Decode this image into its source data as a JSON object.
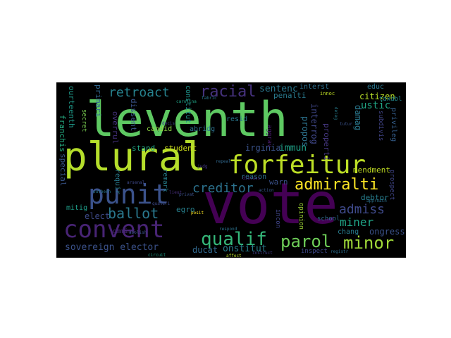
{
  "word_cloud": {
    "background": "#000000",
    "words": [
      {
        "text": "leventh",
        "color": "#5ec962"
      },
      {
        "text": "vote",
        "color": "#440154"
      },
      {
        "text": "plural",
        "color": "#b5de2b"
      },
      {
        "text": "forfeitur",
        "color": "#bddf26"
      },
      {
        "text": "convent",
        "color": "#482475"
      },
      {
        "text": "punit",
        "color": "#3b528b"
      },
      {
        "text": "qualif",
        "color": "#35b779"
      },
      {
        "text": "parol",
        "color": "#6ece58"
      },
      {
        "text": "minor",
        "color": "#a0da39"
      },
      {
        "text": "admiralti",
        "color": "#fde725"
      },
      {
        "text": "creditor",
        "color": "#2c728e"
      },
      {
        "text": "ballot",
        "color": "#2a788e"
      },
      {
        "text": "racial",
        "color": "#46327e"
      },
      {
        "text": "retroact",
        "color": "#26828e"
      },
      {
        "text": "admiss",
        "color": "#3e4989"
      },
      {
        "text": "miner",
        "color": "#20a486"
      },
      {
        "text": "sovereign elector",
        "color": "#3b528b"
      },
      {
        "text": "onstitut",
        "color": "#287d8e"
      },
      {
        "text": "ducat",
        "color": "#31688e"
      },
      {
        "text": "mendment",
        "color": "#c2df23"
      },
      {
        "text": "citizen",
        "color": "#b8de29"
      },
      {
        "text": "sentenc",
        "color": "#2a788e"
      },
      {
        "text": "penalti",
        "color": "#297a8e"
      },
      {
        "text": "ustic",
        "color": "#21a685"
      },
      {
        "text": "irginia",
        "color": "#3a538b"
      },
      {
        "text": "immun",
        "color": "#1fa187"
      },
      {
        "text": "student",
        "color": "#d0e11c"
      },
      {
        "text": "stand",
        "color": "#22a884"
      },
      {
        "text": "reason",
        "color": "#2d708e"
      },
      {
        "text": "warn",
        "color": "#3b528b"
      },
      {
        "text": "debtor",
        "color": "#277f8e"
      },
      {
        "text": "resid",
        "color": "#2a788e"
      },
      {
        "text": "candid",
        "color": "#8fd744"
      },
      {
        "text": "abridg",
        "color": "#2d718e"
      },
      {
        "text": "elect",
        "color": "#3e4a89"
      },
      {
        "text": "egro",
        "color": "#27808e"
      },
      {
        "text": "mitig",
        "color": "#1f9e89"
      },
      {
        "text": "ommiss",
        "color": "#482878"
      },
      {
        "text": "propos",
        "color": "#2c738e"
      },
      {
        "text": "interrog",
        "color": "#3f4788"
      },
      {
        "text": "properti",
        "color": "#453781"
      },
      {
        "text": "damag",
        "color": "#2a788e"
      },
      {
        "text": "ongress",
        "color": "#3b528b"
      },
      {
        "text": "chang",
        "color": "#287c8e"
      },
      {
        "text": "school",
        "color": "#2f6c8e"
      },
      {
        "text": "opinion",
        "color": "#a2da37"
      },
      {
        "text": "incon",
        "color": "#404588"
      },
      {
        "text": "inspect",
        "color": "#3e4989"
      },
      {
        "text": "ourteenth",
        "color": "#1f9a8a"
      },
      {
        "text": "franchis",
        "color": "#25ac82"
      },
      {
        "text": "special",
        "color": "#39568c"
      },
      {
        "text": "primari",
        "color": "#31678e"
      },
      {
        "text": "dissent",
        "color": "#3a548c"
      },
      {
        "text": "overrul",
        "color": "#46337f"
      },
      {
        "text": "secret",
        "color": "#7ad151"
      },
      {
        "text": "requir",
        "color": "#297b8e"
      },
      {
        "text": "remark",
        "color": "#27808e"
      },
      {
        "text": "interst",
        "color": "#2e6f8e"
      },
      {
        "text": "educ",
        "color": "#2a768e"
      },
      {
        "text": "taxabl",
        "color": "#23898e"
      },
      {
        "text": "subdivis",
        "color": "#414487"
      },
      {
        "text": "privileg",
        "color": "#355f8d"
      },
      {
        "text": "prospect",
        "color": "#404688"
      },
      {
        "text": "approach",
        "color": "#2c728e"
      },
      {
        "text": "aggrav",
        "color": "#481a6c"
      },
      {
        "text": "innoc",
        "color": "#c0df25"
      },
      {
        "text": "constitut",
        "color": "#1f948c"
      },
      {
        "text": "tutur",
        "color": "#3b528b"
      },
      {
        "text": "action",
        "color": "#38588c"
      },
      {
        "text": "registr",
        "color": "#2e6e8e"
      },
      {
        "text": "instruct",
        "color": "#433e85"
      },
      {
        "text": "affect",
        "color": "#b5de2b"
      },
      {
        "text": "arsenal",
        "color": "#3e4989"
      },
      {
        "text": "circuit",
        "color": "#1fa088"
      },
      {
        "text": "outhern",
        "color": "#2a788e"
      },
      {
        "text": "privat",
        "color": "#3b528b"
      },
      {
        "text": "posit",
        "color": "#fde725"
      },
      {
        "text": "judg",
        "color": "#443983"
      },
      {
        "text": "respond",
        "color": "#2c728e"
      },
      {
        "text": "discuss",
        "color": "#482475"
      },
      {
        "text": "abolish",
        "color": "#3b528b"
      },
      {
        "text": "deleg",
        "color": "#287d8e"
      },
      {
        "text": "carolina",
        "color": "#20a486"
      },
      {
        "text": "decis",
        "color": "#414487"
      },
      {
        "text": "fabric",
        "color": "#2a788e"
      },
      {
        "text": "repeal",
        "color": "#31688e"
      },
      {
        "text": "qualifi",
        "color": "#3e4989"
      },
      {
        "text": "lieut",
        "color": "#472d7b"
      }
    ]
  }
}
